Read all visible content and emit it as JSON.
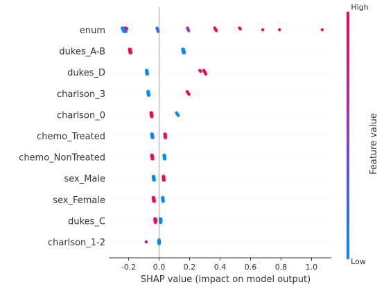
{
  "chart_data": {
    "type": "scatter",
    "subtype": "shap-beeswarm-summary",
    "xlabel": "SHAP value (impact on model output)",
    "xlim": [
      -0.33,
      1.13
    ],
    "xticks": [
      "-0.2",
      "0.0",
      "0.2",
      "0.4",
      "0.6",
      "0.8",
      "1.0"
    ],
    "xtick_values": [
      -0.2,
      0.0,
      0.2,
      0.4,
      0.6,
      0.8,
      1.0
    ],
    "zero_line": 0.0,
    "colorbar": {
      "title": "Feature value",
      "high_label": "High",
      "low_label": "Low",
      "low_color": "#008bfb",
      "high_color": "#ff0052",
      "mid_color": "#8e3bc4"
    },
    "features": [
      {
        "name": "enum",
        "points": [
          {
            "x": -0.23,
            "v": 0.0,
            "n": 10,
            "spread": 0.025
          },
          {
            "x": -0.215,
            "v": 1.0,
            "n": 2,
            "spread": 0.005
          },
          {
            "x": -0.01,
            "v": 0.15,
            "n": 5,
            "spread": 0.008
          },
          {
            "x": 0.19,
            "v": 0.5,
            "n": 4,
            "spread": 0.008
          },
          {
            "x": 0.37,
            "v": 1.0,
            "n": 4,
            "spread": 0.01
          },
          {
            "x": 0.53,
            "v": 1.0,
            "n": 2,
            "spread": 0.005
          },
          {
            "x": 0.68,
            "v": 1.0,
            "n": 1,
            "spread": 0
          },
          {
            "x": 0.79,
            "v": 1.0,
            "n": 1,
            "spread": 0
          },
          {
            "x": 1.07,
            "v": 1.0,
            "n": 1,
            "spread": 0
          }
        ]
      },
      {
        "name": "dukes_A-B",
        "points": [
          {
            "x": -0.19,
            "v": 1.0,
            "n": 10,
            "spread": 0.01
          },
          {
            "x": 0.16,
            "v": 0.0,
            "n": 10,
            "spread": 0.012
          }
        ]
      },
      {
        "name": "dukes_D",
        "points": [
          {
            "x": -0.08,
            "v": 0.0,
            "n": 10,
            "spread": 0.008
          },
          {
            "x": 0.27,
            "v": 1.0,
            "n": 2,
            "spread": 0.005
          },
          {
            "x": 0.3,
            "v": 1.0,
            "n": 5,
            "spread": 0.012
          }
        ]
      },
      {
        "name": "charlson_3",
        "points": [
          {
            "x": -0.07,
            "v": 0.0,
            "n": 10,
            "spread": 0.008
          },
          {
            "x": 0.19,
            "v": 1.0,
            "n": 4,
            "spread": 0.012
          }
        ]
      },
      {
        "name": "charlson_0",
        "points": [
          {
            "x": -0.05,
            "v": 1.0,
            "n": 10,
            "spread": 0.008
          },
          {
            "x": 0.12,
            "v": 0.0,
            "n": 4,
            "spread": 0.012
          }
        ]
      },
      {
        "name": "chemo_Treated",
        "points": [
          {
            "x": -0.045,
            "v": 0.0,
            "n": 10,
            "spread": 0.008
          },
          {
            "x": 0.04,
            "v": 1.0,
            "n": 10,
            "spread": 0.006
          }
        ]
      },
      {
        "name": "chemo_NonTreated",
        "points": [
          {
            "x": -0.045,
            "v": 1.0,
            "n": 10,
            "spread": 0.008
          },
          {
            "x": 0.035,
            "v": 0.0,
            "n": 10,
            "spread": 0.006
          }
        ]
      },
      {
        "name": "sex_Male",
        "points": [
          {
            "x": -0.035,
            "v": 0.0,
            "n": 10,
            "spread": 0.008
          },
          {
            "x": 0.03,
            "v": 1.0,
            "n": 10,
            "spread": 0.006
          }
        ]
      },
      {
        "name": "sex_Female",
        "points": [
          {
            "x": -0.035,
            "v": 1.0,
            "n": 10,
            "spread": 0.008
          },
          {
            "x": 0.025,
            "v": 0.0,
            "n": 10,
            "spread": 0.006
          }
        ]
      },
      {
        "name": "dukes_C",
        "points": [
          {
            "x": -0.025,
            "v": 1.0,
            "n": 8,
            "spread": 0.008
          },
          {
            "x": 0.01,
            "v": 0.0,
            "n": 12,
            "spread": 0.006
          }
        ]
      },
      {
        "name": "charlson_1-2",
        "points": [
          {
            "x": -0.085,
            "v": 1.0,
            "n": 1,
            "spread": 0
          },
          {
            "x": 0.0,
            "v": 0.0,
            "n": 14,
            "spread": 0.004
          }
        ]
      }
    ]
  }
}
